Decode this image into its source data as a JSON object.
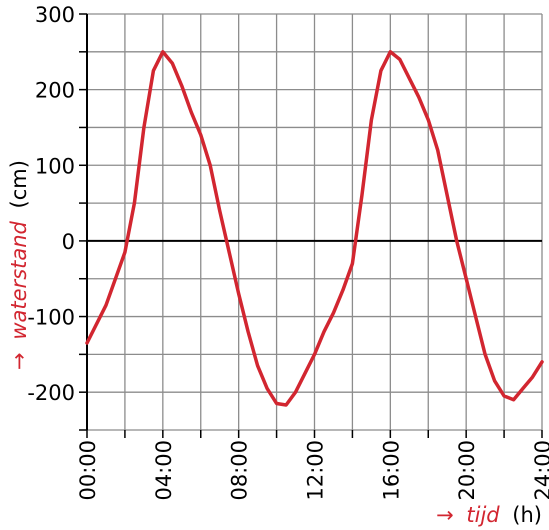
{
  "chart_data": {
    "type": "line",
    "xlabel": {
      "arrow": "→",
      "name": "tijd",
      "unit": "(h)"
    },
    "ylabel": {
      "arrow": "→",
      "name": "waterstand",
      "unit": "(cm)"
    },
    "xlim": [
      0,
      24
    ],
    "ylim": [
      -250,
      300
    ],
    "x_ticks": [
      0,
      4,
      8,
      12,
      16,
      20,
      24
    ],
    "x_tick_labels": [
      "00:00",
      "04:00",
      "08:00",
      "12:00",
      "16:00",
      "20:00",
      "24:00"
    ],
    "y_ticks": [
      -200,
      -100,
      0,
      100,
      200,
      300
    ],
    "y_tick_labels": [
      "-200",
      "-100",
      "0",
      "100",
      "200",
      "300"
    ],
    "grid": true,
    "grid_x_step_hours": 2,
    "grid_y_step": 50,
    "series": [
      {
        "color": "#d22630",
        "x": [
          0,
          1,
          2,
          2.5,
          3,
          3.5,
          4,
          4.5,
          5,
          5.5,
          6,
          6.5,
          7,
          7.5,
          8,
          8.5,
          9,
          9.5,
          10,
          10.5,
          11,
          11.5,
          12,
          12.5,
          13,
          13.5,
          14,
          14.5,
          15,
          15.5,
          16,
          16.5,
          17,
          17.5,
          18,
          18.5,
          19,
          19.5,
          20,
          20.5,
          21,
          21.5,
          22,
          22.5,
          23,
          23.5,
          24
        ],
        "y": [
          -135,
          -85,
          -15,
          50,
          150,
          225,
          250,
          235,
          205,
          170,
          140,
          100,
          40,
          -15,
          -70,
          -120,
          -165,
          -195,
          -215,
          -217,
          -200,
          -175,
          -150,
          -120,
          -95,
          -65,
          -30,
          60,
          160,
          225,
          250,
          240,
          215,
          190,
          160,
          120,
          60,
          0,
          -50,
          -100,
          -150,
          -185,
          -205,
          -210,
          -195,
          -180,
          -160
        ]
      }
    ]
  }
}
